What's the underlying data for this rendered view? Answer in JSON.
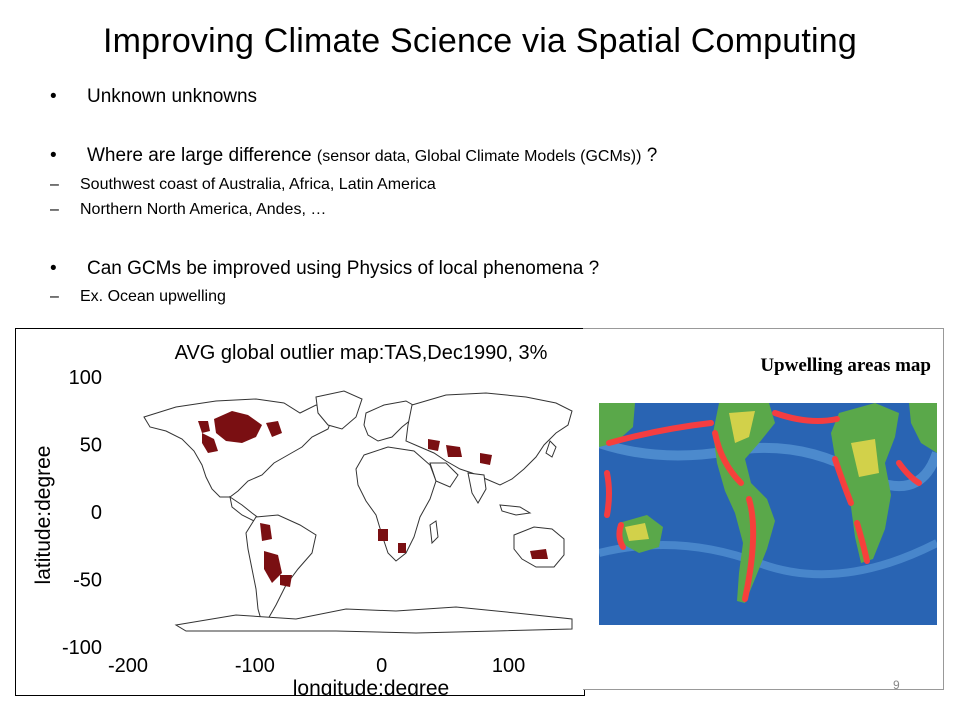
{
  "slide": {
    "title": "Improving Climate Science via Spatial Computing",
    "page_number": "9"
  },
  "bullets": [
    {
      "text": "Unknown unknowns"
    },
    {
      "text_large": "Where are large difference ",
      "text_small": "(sensor data, Global Climate Models (GCMs))",
      "text_tail": " ?"
    },
    {
      "text": "Can GCMs be improved using Physics of local phenomena ?"
    }
  ],
  "sub_bullets": [
    {
      "text": "Southwest coast of Australia, Africa, Latin America"
    },
    {
      "text": "Northern North America, Andes, …"
    },
    {
      "text": "Ex. Ocean upwelling"
    }
  ],
  "bullet_glyph": "•",
  "dash_glyph": "–",
  "outlier_map": {
    "title": "AVG global outlier map:TAS,Dec1990, 3%",
    "xlabel": "longitude:degree",
    "ylabel": "latitude:degree",
    "x_ticks": [
      "-200",
      "-100",
      "0",
      "100"
    ],
    "y_ticks": [
      "100",
      "50",
      "0",
      "-50",
      "-100"
    ],
    "xlim": [
      -200,
      150
    ],
    "ylim": [
      -100,
      100
    ],
    "outlier_color": "#7a0f12"
  },
  "upwelling_map": {
    "title": "Upwelling areas map",
    "ocean_color": "#1f56a8",
    "upwelling_color": "#ff3b3b"
  }
}
